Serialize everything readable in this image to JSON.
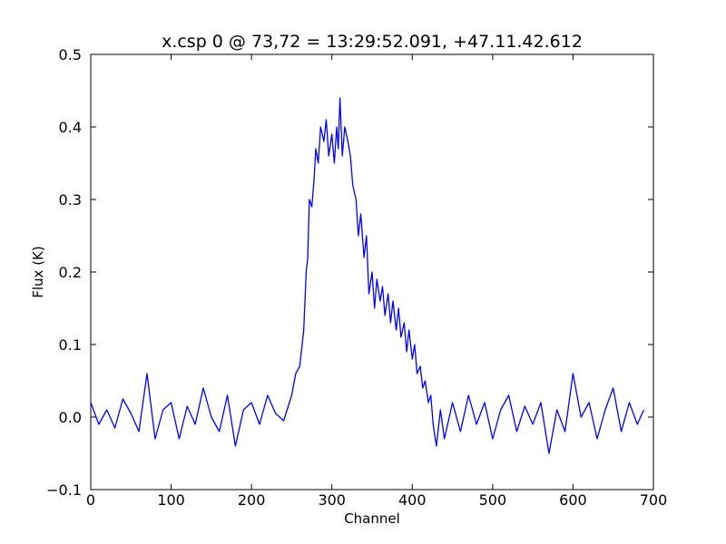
{
  "chart_data": {
    "type": "line",
    "title": "x.csp 0 @ 73,72 = 13:29:52.091, +47.11.42.612",
    "xlabel": "Channel",
    "ylabel": "Flux (K)",
    "xlim": [
      0,
      700
    ],
    "ylim": [
      -0.1,
      0.5
    ],
    "xticks": [
      0,
      100,
      200,
      300,
      400,
      500,
      600,
      700
    ],
    "xtick_labels": [
      "0",
      "100",
      "200",
      "300",
      "400",
      "500",
      "600",
      "700"
    ],
    "yticks": [
      -0.1,
      0.0,
      0.1,
      0.2,
      0.3,
      0.4,
      0.5
    ],
    "ytick_labels": [
      "−0.1",
      "0.0",
      "0.1",
      "0.2",
      "0.3",
      "0.4",
      "0.5"
    ],
    "grid": false,
    "line_color": "#0000ff",
    "series": [
      {
        "x": [
          0,
          10,
          20,
          30,
          40,
          50,
          60,
          70,
          80,
          90,
          100,
          110,
          120,
          130,
          140,
          150,
          160,
          170,
          180,
          190,
          200,
          210,
          220,
          230,
          240,
          250,
          255,
          260,
          265,
          268,
          270,
          272,
          275,
          278,
          280,
          283,
          286,
          290,
          293,
          296,
          300,
          303,
          306,
          308,
          310,
          313,
          316,
          320,
          323,
          326,
          330,
          333,
          336,
          340,
          343,
          346,
          350,
          353,
          356,
          360,
          363,
          366,
          370,
          373,
          376,
          380,
          383,
          386,
          390,
          393,
          396,
          400,
          403,
          406,
          410,
          413,
          416,
          420,
          423,
          426,
          430,
          435,
          440,
          450,
          460,
          470,
          480,
          490,
          500,
          510,
          520,
          530,
          540,
          550,
          560,
          570,
          580,
          590,
          600,
          610,
          620,
          630,
          640,
          650,
          660,
          670,
          680,
          688
        ],
        "values": [
          0.02,
          -0.01,
          0.01,
          -0.015,
          0.025,
          0.005,
          -0.02,
          0.06,
          -0.03,
          0.01,
          0.02,
          -0.03,
          0.015,
          -0.01,
          0.04,
          0.0,
          -0.02,
          0.03,
          -0.04,
          0.01,
          0.02,
          -0.01,
          0.03,
          0.005,
          -0.005,
          0.03,
          0.06,
          0.07,
          0.12,
          0.2,
          0.22,
          0.3,
          0.29,
          0.33,
          0.37,
          0.35,
          0.4,
          0.38,
          0.41,
          0.36,
          0.39,
          0.35,
          0.4,
          0.37,
          0.44,
          0.36,
          0.4,
          0.38,
          0.36,
          0.32,
          0.3,
          0.25,
          0.28,
          0.22,
          0.25,
          0.17,
          0.2,
          0.15,
          0.19,
          0.16,
          0.18,
          0.14,
          0.17,
          0.13,
          0.16,
          0.12,
          0.15,
          0.11,
          0.13,
          0.09,
          0.12,
          0.08,
          0.1,
          0.06,
          0.07,
          0.04,
          0.05,
          0.02,
          0.03,
          -0.01,
          -0.04,
          0.01,
          -0.03,
          0.02,
          -0.02,
          0.03,
          -0.01,
          0.02,
          -0.03,
          0.01,
          0.03,
          -0.02,
          0.015,
          -0.01,
          0.02,
          -0.05,
          0.01,
          -0.02,
          0.06,
          0.0,
          0.02,
          -0.03,
          0.01,
          0.04,
          -0.02,
          0.02,
          -0.01,
          0.01
        ]
      }
    ]
  }
}
